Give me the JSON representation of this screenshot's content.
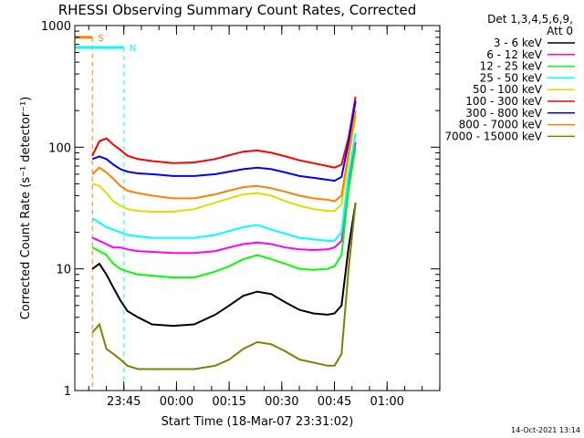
{
  "chart_data": {
    "type": "line",
    "title": "RHESSI Observing Summary Count Rates, Corrected",
    "xlabel": "Start Time (18-Mar-07 23:31:02)",
    "ylabel": "Corrected Count Rate (s⁻¹ detector⁻¹)",
    "y_scale": "log",
    "ylim": [
      1,
      1000
    ],
    "y_ticks": [
      {
        "value": 1,
        "label": "1"
      },
      {
        "value": 10,
        "label": "10"
      },
      {
        "value": 100,
        "label": "100"
      },
      {
        "value": 1000,
        "label": "1000"
      }
    ],
    "x_unit": "minutes since 23:31:02",
    "xlim": [
      0,
      104
    ],
    "x_ticks": [
      {
        "value": 13.97,
        "label": "23:45"
      },
      {
        "value": 28.97,
        "label": "00:00"
      },
      {
        "value": 43.97,
        "label": "00:15"
      },
      {
        "value": 58.97,
        "label": "00:30"
      },
      {
        "value": 73.97,
        "label": "00:45"
      },
      {
        "value": 88.97,
        "label": "01:00"
      }
    ],
    "legend": {
      "placement": "right",
      "header": "Det 1,3,4,5,6,9,",
      "subheader": "Att 0"
    },
    "series": [
      {
        "name": "3 - 6 keV",
        "color": "#000000",
        "x": [
          5,
          7,
          9,
          11,
          13,
          15,
          18,
          22,
          28,
          34,
          40,
          44,
          48,
          52,
          56,
          60,
          64,
          68,
          72,
          74,
          76,
          78,
          80
        ],
        "y": [
          10,
          11,
          9,
          7,
          5.5,
          4.5,
          4.0,
          3.5,
          3.4,
          3.5,
          4.2,
          5.0,
          6.0,
          6.5,
          6.2,
          5.3,
          4.6,
          4.3,
          4.2,
          4.3,
          5.0,
          15,
          35
        ]
      },
      {
        "name": "6 - 12 keV",
        "color": "#ff00ff",
        "x": [
          5,
          7,
          9,
          11,
          13,
          15,
          18,
          22,
          28,
          34,
          40,
          44,
          48,
          52,
          56,
          60,
          64,
          68,
          72,
          74,
          76,
          78,
          80
        ],
        "y": [
          18,
          17,
          16,
          15,
          15,
          14.5,
          14,
          13.8,
          13.5,
          13.5,
          14,
          15,
          16,
          16.5,
          16,
          15,
          14.5,
          14.3,
          14.5,
          15,
          17,
          50,
          110
        ]
      },
      {
        "name": "12 - 25 keV",
        "color": "#00ff00",
        "x": [
          5,
          7,
          9,
          11,
          13,
          15,
          18,
          22,
          28,
          34,
          40,
          44,
          48,
          52,
          56,
          60,
          64,
          68,
          72,
          74,
          76,
          78,
          80
        ],
        "y": [
          15,
          14,
          13,
          11,
          10,
          9.5,
          9,
          8.8,
          8.5,
          8.5,
          9.5,
          10.5,
          12,
          13,
          12,
          11,
          10,
          9.8,
          10,
          10.5,
          13,
          45,
          100
        ]
      },
      {
        "name": "25 - 50 keV",
        "color": "#00ffff",
        "x": [
          5,
          7,
          9,
          11,
          13,
          15,
          18,
          22,
          28,
          34,
          40,
          44,
          48,
          52,
          56,
          60,
          64,
          68,
          72,
          74,
          76,
          78,
          80
        ],
        "y": [
          26,
          24,
          22,
          21,
          20,
          19,
          18.5,
          18,
          18,
          18,
          19,
          20.5,
          22,
          23,
          21,
          19.5,
          18,
          17.5,
          17,
          17,
          20,
          60,
          130
        ]
      },
      {
        "name": "50 - 100 keV",
        "color": "#dddd00",
        "x": [
          5,
          7,
          9,
          11,
          13,
          15,
          18,
          22,
          28,
          34,
          40,
          44,
          48,
          52,
          56,
          60,
          64,
          68,
          72,
          74,
          76,
          78,
          80
        ],
        "y": [
          50,
          48,
          42,
          36,
          33,
          31,
          30,
          29.5,
          29.5,
          31,
          35,
          38,
          41,
          42,
          40,
          36,
          33,
          31,
          30,
          30,
          34,
          80,
          180
        ]
      },
      {
        "name": "100 - 300 keV",
        "color": "#ff0000",
        "x": [
          5,
          7,
          9,
          11,
          13,
          15,
          18,
          22,
          28,
          34,
          40,
          44,
          48,
          52,
          56,
          60,
          64,
          68,
          72,
          74,
          76,
          78,
          80
        ],
        "y": [
          85,
          112,
          118,
          105,
          95,
          85,
          80,
          77,
          74,
          75,
          80,
          86,
          92,
          94,
          90,
          84,
          78,
          74,
          70,
          68,
          72,
          120,
          260
        ]
      },
      {
        "name": "300 - 800 keV",
        "color": "#0000ff",
        "x": [
          5,
          7,
          9,
          11,
          13,
          15,
          18,
          22,
          28,
          34,
          40,
          44,
          48,
          52,
          56,
          60,
          64,
          68,
          72,
          74,
          76,
          78,
          80
        ],
        "y": [
          80,
          84,
          80,
          72,
          66,
          63,
          61,
          60,
          58,
          58,
          60,
          63,
          66,
          68,
          66,
          62,
          58,
          56,
          54,
          53,
          57,
          110,
          240
        ]
      },
      {
        "name": "800 - 7000 keV",
        "color": "#ff8000",
        "x": [
          5,
          7,
          9,
          11,
          13,
          15,
          18,
          22,
          28,
          34,
          40,
          44,
          48,
          52,
          56,
          60,
          64,
          68,
          72,
          74,
          76,
          78,
          80
        ],
        "y": [
          60,
          68,
          62,
          55,
          48,
          44,
          42,
          40,
          38,
          38,
          41,
          44,
          47,
          48,
          46,
          43,
          40,
          38,
          37,
          36,
          40,
          90,
          200
        ]
      },
      {
        "name": "7000 - 15000 keV",
        "color": "#808000",
        "x": [
          5,
          7,
          9,
          11,
          13,
          15,
          18,
          22,
          28,
          34,
          40,
          44,
          48,
          52,
          56,
          60,
          64,
          68,
          72,
          74,
          76,
          78,
          80
        ],
        "y": [
          3.0,
          3.5,
          2.2,
          2.0,
          1.8,
          1.6,
          1.5,
          1.5,
          1.5,
          1.5,
          1.6,
          1.8,
          2.2,
          2.5,
          2.4,
          2.1,
          1.8,
          1.7,
          1.6,
          1.6,
          2.0,
          10,
          35
        ]
      }
    ],
    "flags": [
      {
        "label": "S",
        "color": "#ff8000",
        "x": 5.0,
        "y": 800
      },
      {
        "label": "N",
        "color": "#00ffff",
        "x": 14.0,
        "y": 660
      }
    ],
    "grid": false
  },
  "footer": {
    "date": "14-Oct-2021 13:14"
  }
}
